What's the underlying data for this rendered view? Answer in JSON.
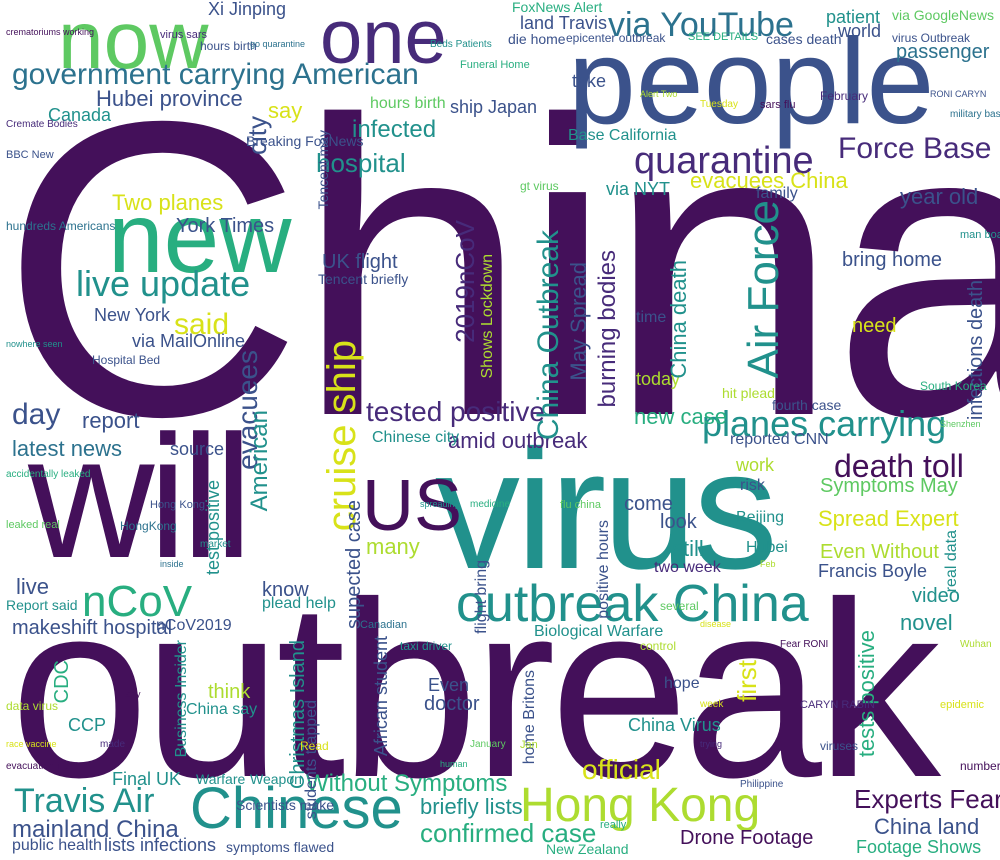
{
  "palette": {
    "dark_purple": "#44105a",
    "purple": "#472b7a",
    "indigo": "#3b528b",
    "blue": "#2c728e",
    "teal": "#21918c",
    "green": "#28ae80",
    "lime": "#5ec962",
    "yellowgreen": "#addc30",
    "yellow": "#d8e219"
  },
  "words": {
    "china": "China",
    "people": "people",
    "outbreak": "outbreak",
    "virus": "virus",
    "will": "will",
    "new": "new",
    "now": "now",
    "one": "one",
    "us": "US",
    "chinese": "Chinese",
    "hong_kong": "Hong Kong",
    "outbreak_china": "outbreak China",
    "government_carrying_american": "government carrying American",
    "via_youtube": "via YouTube",
    "quarantine": "quarantine",
    "force_base": "Force Base",
    "live_update": "live update",
    "hubei_province": "Hubei province",
    "hospital": "hospital",
    "infected": "infected",
    "day": "day",
    "report": "report",
    "tested_positive": "tested positive",
    "planes_carrying": "planes carrying",
    "death_toll": "death toll",
    "amid_outbreak": "amid outbreak",
    "latest_news": "latest news",
    "cruise_ship": "cruise ship",
    "air_force": "Air Force",
    "china_outbreak": "China Outbreak",
    "ncov": "nCoV",
    "travis_air": "Travis Air",
    "mainland_china": "mainland China",
    "confirmed_case": "confirmed case",
    "experts_fear": "Experts Fear",
    "china_land": "China land",
    "drone_footage": "Drone Footage",
    "footage_shows": "Footage Shows",
    "without_symptoms": "Without Symptoms",
    "briefly_lists": "briefly lists",
    "official": "official",
    "new_york": "New York",
    "york_times": "York Times",
    "two_planes": "Two planes",
    "year_old": "year old",
    "evacuees_china": "evacuees China",
    "uk_flight": "UK flight",
    "said": "said",
    "via_mailonline": "via MailOnline",
    "evacuees": "evacuees",
    "city": "city",
    "american": "American",
    "say": "say",
    "xi_jinping": "Xi Jinping",
    "land_travis": "land Travis",
    "foxnews_alert": "FoxNews Alert",
    "via_googlenews": "via GoogleNews",
    "passenger": "passenger",
    "patient": "patient",
    "world": "world",
    "ship_japan": "ship Japan",
    "hours_birth": "hours birth",
    "canada": "Canada",
    "spread_expert": "Spread Expert",
    "symptoms_may": "Symptoms May",
    "even_without": "Even Without",
    "francis_boyle": "Francis Boyle",
    "video": "video",
    "novel": "novel",
    "tests_positive": "tests positive",
    "first": "first",
    "many": "many",
    "still": "still",
    "new_case": "new case",
    "two_week": "two week",
    "today": "today",
    "need": "need",
    "bring_home": "bring home",
    "makeshift_hospital": "makeshift hospital",
    "report_said": "Report said",
    "public_health": "public health",
    "lists_infections": "lists infections",
    "final_uk": "Final UK",
    "ccp": "CCP",
    "cdc": "CDC",
    "know": "know",
    "live": "live",
    "think": "think",
    "china_virus": "China Virus",
    "hope": "hope",
    "look": "look",
    "come": "come",
    "doctor": "doctor",
    "even": "Even",
    "chinese_city": "Chinese city",
    "source": "source",
    "take": "take",
    "time": "time",
    "family": "family",
    "ncov2019_vertical": "2019nCoV",
    "ncov2019": "nCoV2019",
    "biological_warfare": "Biological Warfare",
    "plead_help": "plead help",
    "hospital_bed": "Hospital Bed",
    "breaking_foxnews": "Breaking FoxNews",
    "tencent_briefly": "Tencent briefly",
    "base_california": "Base California",
    "via_nyt": "via NYT",
    "epicenter_outbreak": "epicenter outbreak",
    "die_home": "die home",
    "see_details": "SEE DETAILS",
    "cases_death": "cases death",
    "virus_outbreak": "virus Outbreak",
    "infections_death": "infections death",
    "christmas_island": "Christmas Island",
    "african_student": "African student",
    "flight_bring": "flight bring",
    "home_britons": "home Britons",
    "may_spread": "May Spread",
    "burning_bodies": "burning bodies",
    "china_death": "China death",
    "supected_case": "supected case",
    "business_insider": "Business Insider",
    "test_positive": "test positive",
    "shows_lockdown": "Shows Lockdown",
    "positive_hours": "positive hours",
    "students_trapped": "students trapped",
    "real_data": "real data",
    "china_say": "China say",
    "weapon": "Weapon",
    "warfare": "Warfare",
    "scientists_make": "Scientists make",
    "symptoms_flawed": "symptoms flawed",
    "new_zealand": "New Zealand",
    "beijing": "Beijing",
    "hubei": "Hubei",
    "work": "work",
    "risk": "risk",
    "reported_cnn": "reported CNN",
    "fourth_case": "fourth case",
    "hit_plead": "hit plead",
    "tencent_may": "Tencent may",
    "twitter_mentions": [
      "crematoriums working",
      "Cremate Bodies",
      "BBC New",
      "hundreds Americans",
      "nowhere seen",
      "accidentally leaked",
      "leaked real",
      "data virus",
      "race vaccine",
      "evacuation flight",
      "virus sars",
      "hours birth",
      "go quarantine",
      "Beds Patients",
      "Funeral Home",
      "gt virus",
      "Alert Two",
      "Tuesday",
      "sars flu",
      "February",
      "RONI CARYN",
      "military base",
      "man board",
      "South Korea",
      "Shenzhen",
      "Wuhan",
      "epidemic",
      "number",
      "trying",
      "Philippine",
      "Canadian",
      "taxi driver",
      "human",
      "January",
      "Jan",
      "Read",
      "Early",
      "made",
      "Hong Kong",
      "HongKong",
      "spreading",
      "medicine",
      "flu china",
      "control",
      "disease",
      "Fear RONI",
      "CARYN RABIN",
      "viruses",
      "inside",
      "market",
      "really",
      "several",
      "Feb",
      "week"
    ]
  }
}
